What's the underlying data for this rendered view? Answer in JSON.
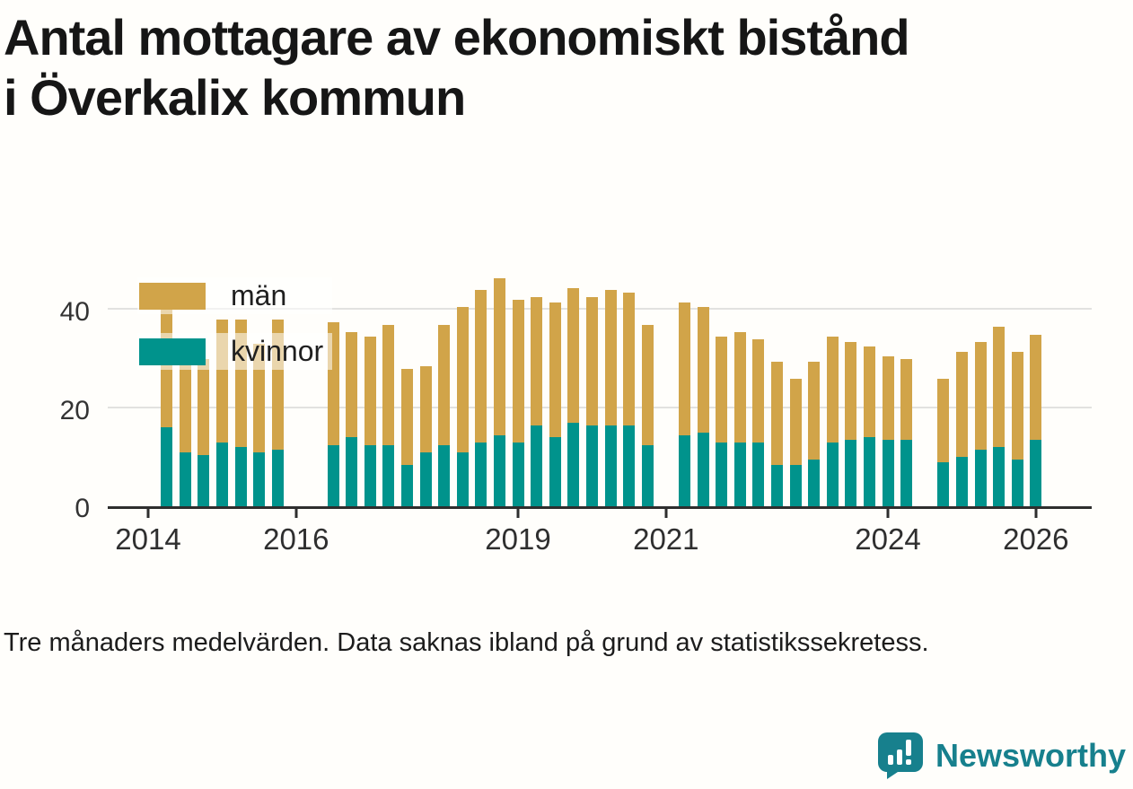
{
  "title_lines": [
    "Antal mottagare av ekonomiskt bistånd",
    "i Överkalix kommun"
  ],
  "footnote": "Tre månaders medelvärden. Data saknas ibland på grund av statistikssekretess.",
  "branding": {
    "name": "Newsworthy",
    "color": "#17808d"
  },
  "legend": {
    "items": [
      {
        "label": "män",
        "color": "#d1a449"
      },
      {
        "label": "kvinnor",
        "color": "#00938c"
      }
    ]
  },
  "chart_data": {
    "type": "bar",
    "stacked": true,
    "title": "Antal mottagare av ekonomiskt bistånd i Överkalix kommun",
    "xlabel": "",
    "ylabel": "",
    "ylim": [
      0,
      48.8
    ],
    "yticks": [
      0,
      20,
      40
    ],
    "xticks": [
      2014,
      2016,
      2019,
      2021,
      2024,
      2026
    ],
    "grid": true,
    "legend_position": "top-left-inside",
    "colors": {
      "man": "#d1a449",
      "kvinnor": "#00938c"
    },
    "series_order_bottom_to_top": [
      "kvinnor",
      "män"
    ],
    "columns": [
      "time_decimal_year",
      "kvinnor",
      "män"
    ],
    "points": [
      [
        2014.25,
        16,
        28
      ],
      [
        2014.5,
        11,
        20
      ],
      [
        2014.75,
        10.5,
        19.5
      ],
      [
        2015.0,
        13,
        25
      ],
      [
        2015.25,
        12,
        26
      ],
      [
        2015.5,
        11,
        22
      ],
      [
        2015.75,
        11.5,
        26.5
      ],
      [
        2016.5,
        12.5,
        25
      ],
      [
        2016.75,
        14,
        21.5
      ],
      [
        2017.0,
        12.5,
        22
      ],
      [
        2017.25,
        12.5,
        24.5
      ],
      [
        2017.5,
        8.5,
        19.5
      ],
      [
        2017.75,
        11,
        17.5
      ],
      [
        2018.0,
        12.5,
        24.5
      ],
      [
        2018.25,
        11,
        29.5
      ],
      [
        2018.5,
        13,
        31
      ],
      [
        2018.75,
        14.5,
        32
      ],
      [
        2019.0,
        13,
        29
      ],
      [
        2019.25,
        16.5,
        26
      ],
      [
        2019.5,
        14,
        27.5
      ],
      [
        2019.75,
        17,
        27.5
      ],
      [
        2020.0,
        16.5,
        26
      ],
      [
        2020.25,
        16.5,
        27.5
      ],
      [
        2020.5,
        16.5,
        27
      ],
      [
        2020.75,
        12.5,
        24.5
      ],
      [
        2021.25,
        14.5,
        27
      ],
      [
        2021.5,
        15,
        25.5
      ],
      [
        2021.75,
        13,
        21.5
      ],
      [
        2022.0,
        13,
        22.5
      ],
      [
        2022.25,
        13,
        21
      ],
      [
        2022.5,
        8.5,
        21
      ],
      [
        2022.75,
        8.5,
        17.5
      ],
      [
        2023.0,
        9.5,
        20
      ],
      [
        2023.25,
        13,
        21.5
      ],
      [
        2023.5,
        13.5,
        20
      ],
      [
        2023.75,
        14,
        18.5
      ],
      [
        2024.0,
        13.5,
        17
      ],
      [
        2024.25,
        13.5,
        16.5
      ],
      [
        2024.75,
        9,
        17
      ],
      [
        2025.0,
        10,
        21.5
      ],
      [
        2025.25,
        11.5,
        22
      ],
      [
        2025.5,
        12,
        24.5
      ],
      [
        2025.75,
        9.5,
        22
      ],
      [
        2026.0,
        13.5,
        21.5
      ]
    ],
    "missing_quarters": [
      2016.0,
      2016.25,
      2021.0,
      2024.5
    ]
  }
}
